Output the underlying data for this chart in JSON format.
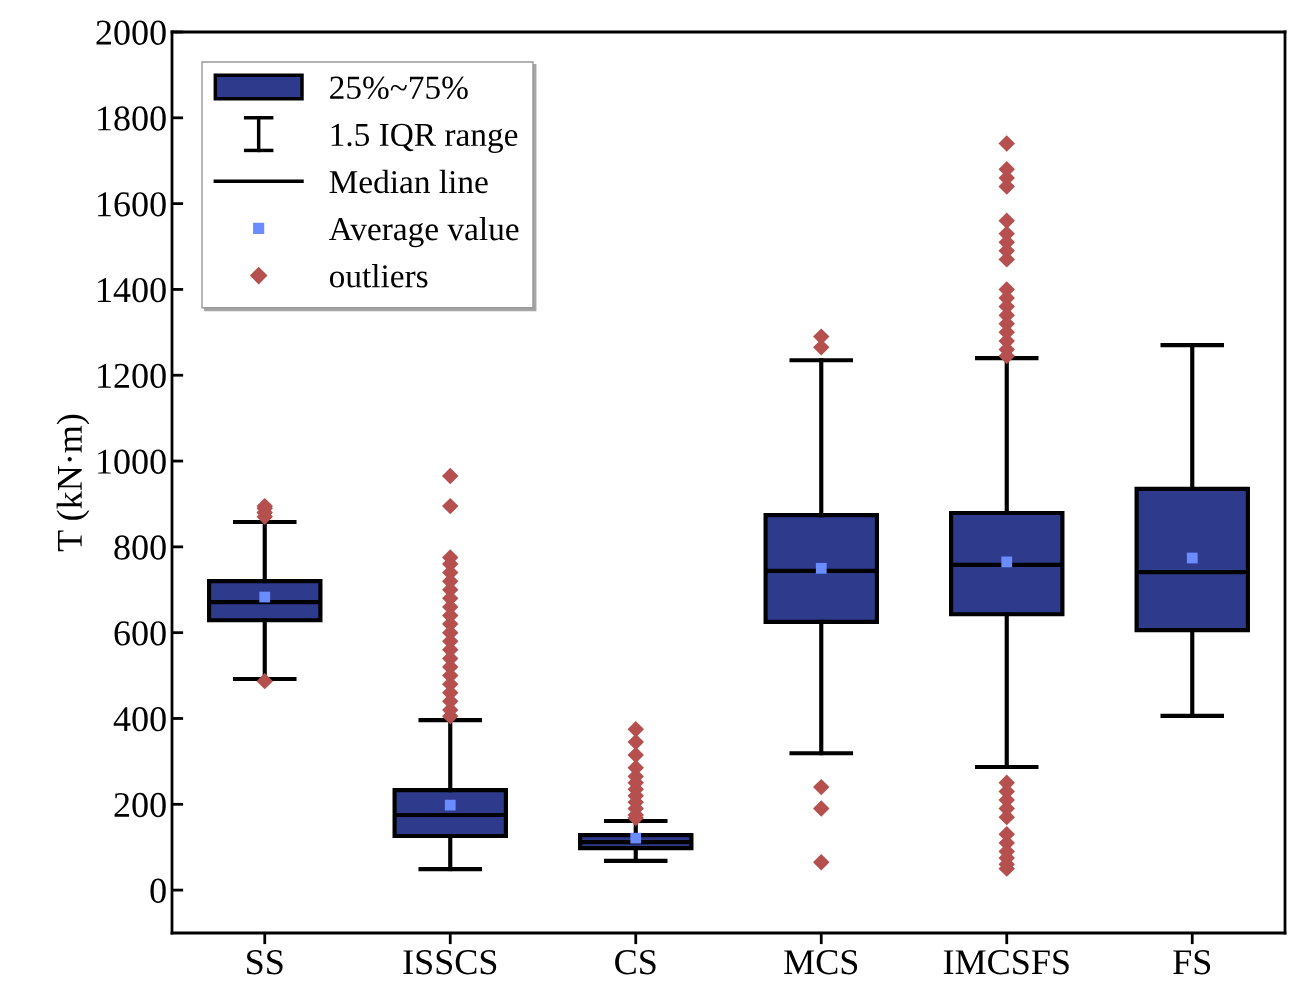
{
  "chart_data": {
    "type": "box",
    "ylabel": "T (kN·m)",
    "categories": [
      "SS",
      "ISSCS",
      "CS",
      "MCS",
      "IMCSFS",
      "FS"
    ],
    "ylim": [
      -100,
      2000
    ],
    "yticks": [
      0,
      200,
      400,
      600,
      800,
      1000,
      1200,
      1400,
      1600,
      1800,
      2000
    ],
    "grid": false,
    "legend": "top left",
    "annotations": [
      "1.5 IQR range",
      "Median line"
    ],
    "series": [
      {
        "name": "25%~75%",
        "color": "#2e3b8c",
        "boxes": [
          {
            "low": 492,
            "q1": 629,
            "median": 671,
            "q3": 720,
            "high": 858
          },
          {
            "low": 49,
            "q1": 126,
            "median": 175,
            "q3": 233,
            "high": 396
          },
          {
            "low": 68,
            "q1": 98,
            "median": 112,
            "q3": 128,
            "high": 161
          },
          {
            "low": 319,
            "q1": 625,
            "median": 744,
            "q3": 874,
            "high": 1235
          },
          {
            "low": 287,
            "q1": 643,
            "median": 758,
            "q3": 879,
            "high": 1240
          },
          {
            "low": 406,
            "q1": 606,
            "median": 741,
            "q3": 935,
            "high": 1270
          }
        ]
      },
      {
        "type": "scatter",
        "name": "Average value",
        "color": "#6a8cff",
        "marker": "square",
        "x": [
          "SS",
          "ISSCS",
          "CS",
          "MCS",
          "IMCSFS",
          "FS"
        ],
        "values": [
          683,
          198,
          121,
          750,
          765,
          774
        ]
      },
      {
        "type": "scatter",
        "name": "outliers",
        "color": "#b5504f",
        "marker": "diamond",
        "x": [
          "SS",
          "SS",
          "SS",
          "SS",
          "SS",
          "ISSCS",
          "ISSCS",
          "ISSCS",
          "ISSCS",
          "ISSCS",
          "ISSCS",
          "ISSCS",
          "ISSCS",
          "ISSCS",
          "ISSCS",
          "ISSCS",
          "ISSCS",
          "ISSCS",
          "ISSCS",
          "ISSCS",
          "ISSCS",
          "ISSCS",
          "ISSCS",
          "ISSCS",
          "ISSCS",
          "ISSCS",
          "ISSCS",
          "CS",
          "CS",
          "CS",
          "CS",
          "CS",
          "CS",
          "CS",
          "CS",
          "CS",
          "CS",
          "CS",
          "CS",
          "MCS",
          "MCS",
          "MCS",
          "MCS",
          "MCS",
          "IMCSFS",
          "IMCSFS",
          "IMCSFS",
          "IMCSFS",
          "IMCSFS",
          "IMCSFS",
          "IMCSFS",
          "IMCSFS",
          "IMCSFS",
          "IMCSFS",
          "IMCSFS",
          "IMCSFS",
          "IMCSFS",
          "IMCSFS",
          "IMCSFS",
          "IMCSFS",
          "IMCSFS",
          "IMCSFS",
          "IMCSFS",
          "IMCSFS",
          "IMCSFS",
          "IMCSFS",
          "IMCSFS",
          "IMCSFS",
          "IMCSFS",
          "IMCSFS",
          "IMCSFS",
          "IMCSFS",
          "IMCSFS"
        ],
        "values": [
          870,
          880,
          890,
          895,
          487,
          965,
          895,
          775,
          760,
          740,
          720,
          700,
          680,
          660,
          640,
          620,
          600,
          580,
          560,
          540,
          520,
          500,
          480,
          460,
          440,
          420,
          405,
          375,
          345,
          315,
          285,
          265,
          250,
          235,
          220,
          205,
          190,
          175,
          168,
          1290,
          1265,
          240,
          190,
          65,
          1740,
          1680,
          1660,
          1640,
          1560,
          1530,
          1510,
          1490,
          1470,
          1400,
          1380,
          1360,
          1340,
          1320,
          1300,
          1280,
          1260,
          1245,
          250,
          230,
          210,
          190,
          170,
          130,
          110,
          90,
          75,
          60,
          50
        ]
      }
    ]
  }
}
